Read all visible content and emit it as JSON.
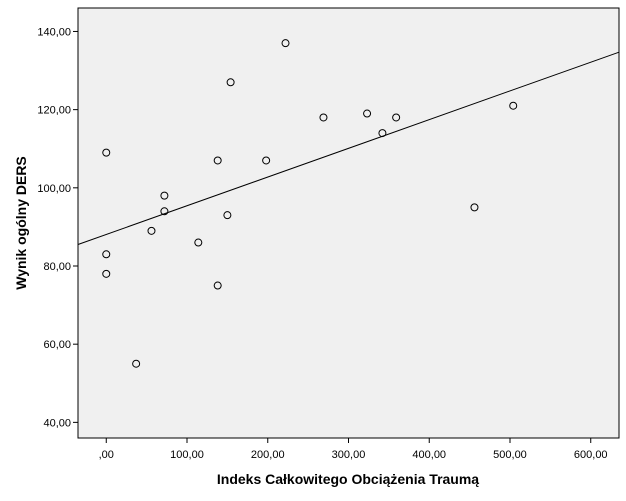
{
  "chart_data": {
    "type": "scatter",
    "xlabel": "Indeks Całkowitego Obciążenia Traumą",
    "ylabel": "Wynik ogólny DERS",
    "xlim": [
      -35,
      635
    ],
    "ylim": [
      36,
      146
    ],
    "x_ticks": [
      {
        "value": 0,
        "label": ",00"
      },
      {
        "value": 100,
        "label": "100,00"
      },
      {
        "value": 200,
        "label": "200,00"
      },
      {
        "value": 300,
        "label": "300,00"
      },
      {
        "value": 400,
        "label": "400,00"
      },
      {
        "value": 500,
        "label": "500,00"
      },
      {
        "value": 600,
        "label": "600,00"
      }
    ],
    "y_ticks": [
      {
        "value": 40,
        "label": "40,00"
      },
      {
        "value": 60,
        "label": "60,00"
      },
      {
        "value": 80,
        "label": "80,00"
      },
      {
        "value": 100,
        "label": "100,00"
      },
      {
        "value": 120,
        "label": "120,00"
      },
      {
        "value": 140,
        "label": "140,00"
      }
    ],
    "points": [
      {
        "x": 0,
        "y": 109
      },
      {
        "x": 0,
        "y": 83
      },
      {
        "x": 0,
        "y": 78
      },
      {
        "x": 37,
        "y": 55
      },
      {
        "x": 56,
        "y": 89
      },
      {
        "x": 72,
        "y": 98
      },
      {
        "x": 72,
        "y": 94
      },
      {
        "x": 114,
        "y": 86
      },
      {
        "x": 138,
        "y": 107
      },
      {
        "x": 138,
        "y": 75
      },
      {
        "x": 150,
        "y": 93
      },
      {
        "x": 154,
        "y": 127
      },
      {
        "x": 198,
        "y": 107
      },
      {
        "x": 222,
        "y": 137
      },
      {
        "x": 269,
        "y": 118
      },
      {
        "x": 323,
        "y": 119
      },
      {
        "x": 342,
        "y": 114
      },
      {
        "x": 359,
        "y": 118
      },
      {
        "x": 456,
        "y": 95
      },
      {
        "x": 504,
        "y": 121
      }
    ],
    "fit_line": {
      "x": [
        -35,
        635
      ],
      "y": [
        85.5,
        134.7
      ]
    },
    "grid": false,
    "colors": {
      "plot_background": "#f0f0f0",
      "marker_stroke": "#000000",
      "line": "#000000"
    }
  }
}
